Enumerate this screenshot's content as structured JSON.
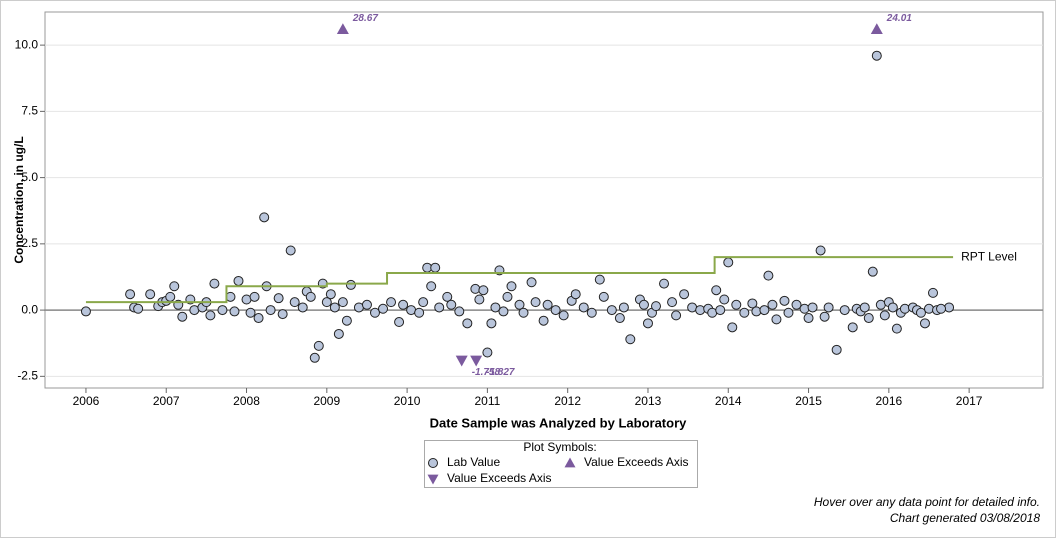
{
  "chart_data": {
    "type": "scatter",
    "y_label": "Concentration, in ug/L",
    "x_label": "Date Sample was Analyzed by Laboratory",
    "legend_title": "Plot Symbols:",
    "notes": [
      "Hover over any data point for detailed info.",
      "Chart generated 03/08/2018"
    ],
    "xlim": [
      2005.49,
      2017.92
    ],
    "ylim": [
      -2.94,
      11.25
    ],
    "xticks": [
      2006,
      2007,
      2008,
      2009,
      2010,
      2011,
      2012,
      2013,
      2014,
      2015,
      2016,
      2017
    ],
    "yticks": [
      {
        "value": -2.5,
        "label": "-2.5"
      },
      {
        "value": 0,
        "label": "0.0"
      },
      {
        "value": 2.5,
        "label": "2.5"
      },
      {
        "value": 5,
        "label": "5.0"
      },
      {
        "value": 7.5,
        "label": "7.5"
      },
      {
        "value": 10,
        "label": "10.0"
      }
    ],
    "grid": true,
    "reference_y": 0,
    "series": [
      {
        "name": "Lab Value",
        "kind": "scatter",
        "marker": "circle",
        "color": "#b9c5db",
        "x": [
          2006.0,
          2006.55,
          2006.6,
          2006.8,
          2007.1,
          2007.2,
          2007.6,
          2007.9,
          2008.22,
          2008.55,
          2008.25,
          2008.85,
          2008.9,
          2008.95,
          2009.15,
          2009.3,
          2010.25,
          2010.35,
          2010.3,
          2010.75,
          2011.0,
          2011.05,
          2011.15,
          2011.3,
          2011.55,
          2011.7,
          2012.4,
          2012.78,
          2013.0,
          2013.2,
          2013.45,
          2013.85,
          2014.0,
          2014.05,
          2014.5,
          2014.6,
          2015.15,
          2015.35,
          2015.55,
          2015.8,
          2015.85,
          2016.1,
          2016.45,
          2016.55,
          2016.75,
          2006.65,
          2006.9,
          2006.95,
          2007.0,
          2007.05,
          2007.15,
          2007.3,
          2007.35,
          2007.45,
          2007.5,
          2007.55,
          2007.7,
          2007.8,
          2007.85,
          2008.0,
          2008.05,
          2008.1,
          2008.15,
          2008.3,
          2008.4,
          2008.45,
          2008.6,
          2008.7,
          2008.75,
          2008.8,
          2009.0,
          2009.05,
          2009.1,
          2009.2,
          2009.25,
          2009.4,
          2009.5,
          2009.6,
          2009.7,
          2009.8,
          2009.9,
          2009.95,
          2010.05,
          2010.15,
          2010.2,
          2010.4,
          2010.5,
          2010.55,
          2010.65,
          2010.85,
          2010.9,
          2010.95,
          2011.1,
          2011.2,
          2011.25,
          2011.4,
          2011.45,
          2011.6,
          2011.75,
          2011.85,
          2011.95,
          2012.05,
          2012.1,
          2012.2,
          2012.3,
          2012.45,
          2012.55,
          2012.65,
          2012.7,
          2012.9,
          2012.95,
          2013.05,
          2013.1,
          2013.3,
          2013.35,
          2013.55,
          2013.65,
          2013.75,
          2013.8,
          2013.9,
          2013.95,
          2014.1,
          2014.2,
          2014.3,
          2014.35,
          2014.45,
          2014.55,
          2014.7,
          2014.75,
          2014.85,
          2014.95,
          2015.0,
          2015.05,
          2015.2,
          2015.25,
          2015.45,
          2015.6,
          2015.65,
          2015.7,
          2015.75,
          2015.9,
          2015.95,
          2016.0,
          2016.05,
          2016.15,
          2016.2,
          2016.3,
          2016.35,
          2016.4,
          2016.5,
          2016.6,
          2016.65
        ],
        "values": [
          -0.05,
          0.6,
          0.1,
          0.6,
          0.9,
          -0.25,
          1.0,
          1.1,
          3.5,
          2.25,
          0.9,
          -1.8,
          -1.35,
          1.0,
          -0.9,
          0.95,
          1.6,
          1.6,
          0.9,
          -0.5,
          -1.6,
          -0.5,
          1.5,
          0.9,
          1.05,
          -0.4,
          1.15,
          -1.1,
          -0.5,
          1.0,
          0.6,
          0.75,
          1.8,
          -0.65,
          1.3,
          -0.35,
          2.25,
          -1.5,
          -0.65,
          1.45,
          9.6,
          -0.7,
          -0.5,
          0.65,
          0.1,
          0.05,
          0.15,
          0.3,
          0.35,
          0.5,
          0.2,
          0.4,
          0.0,
          0.1,
          0.3,
          -0.2,
          0.0,
          0.5,
          -0.05,
          0.4,
          -0.1,
          0.5,
          -0.3,
          0.0,
          0.45,
          -0.15,
          0.3,
          0.1,
          0.7,
          0.5,
          0.3,
          0.6,
          0.1,
          0.3,
          -0.4,
          0.1,
          0.2,
          -0.1,
          0.05,
          0.3,
          -0.45,
          0.2,
          0.0,
          -0.1,
          0.3,
          0.1,
          0.5,
          0.2,
          -0.05,
          0.8,
          0.4,
          0.75,
          0.1,
          -0.05,
          0.5,
          0.2,
          -0.1,
          0.3,
          0.2,
          0.0,
          -0.2,
          0.35,
          0.6,
          0.1,
          -0.1,
          0.5,
          0.0,
          -0.3,
          0.1,
          0.4,
          0.2,
          -0.1,
          0.15,
          0.3,
          -0.2,
          0.1,
          0.0,
          0.05,
          -0.1,
          0.0,
          0.4,
          0.2,
          -0.1,
          0.25,
          -0.05,
          0.0,
          0.2,
          0.35,
          -0.1,
          0.2,
          0.05,
          -0.3,
          0.1,
          -0.25,
          0.1,
          0.0,
          0.05,
          -0.05,
          0.1,
          -0.3,
          0.2,
          -0.2,
          0.3,
          0.1,
          -0.1,
          0.05,
          0.1,
          0.0,
          -0.1,
          0.05,
          0.0,
          0.05
        ]
      },
      {
        "name": "Value Exceeds Axis",
        "kind": "scatter",
        "marker": "triangle-up",
        "color": "#7b5a9e",
        "x": [
          2009.2,
          2015.85
        ],
        "values": [
          10.6,
          10.6
        ],
        "labels": [
          "28.67",
          "24.01"
        ]
      },
      {
        "name": "Value Exceeds Axis",
        "kind": "scatter",
        "marker": "triangle-down",
        "color": "#7b5a9e",
        "x": [
          2010.68,
          2010.86
        ],
        "values": [
          -1.9,
          -1.9
        ],
        "labels": [
          "-1.758",
          "-1.827"
        ]
      },
      {
        "name": "RPT Level",
        "kind": "step",
        "color": "#8aa84a",
        "x": [
          2006.0,
          2007.75,
          2009.0,
          2009.75,
          2013.83,
          2016.8
        ],
        "values": [
          0.3,
          0.9,
          1.0,
          1.4,
          2.0,
          2.0
        ]
      }
    ]
  }
}
